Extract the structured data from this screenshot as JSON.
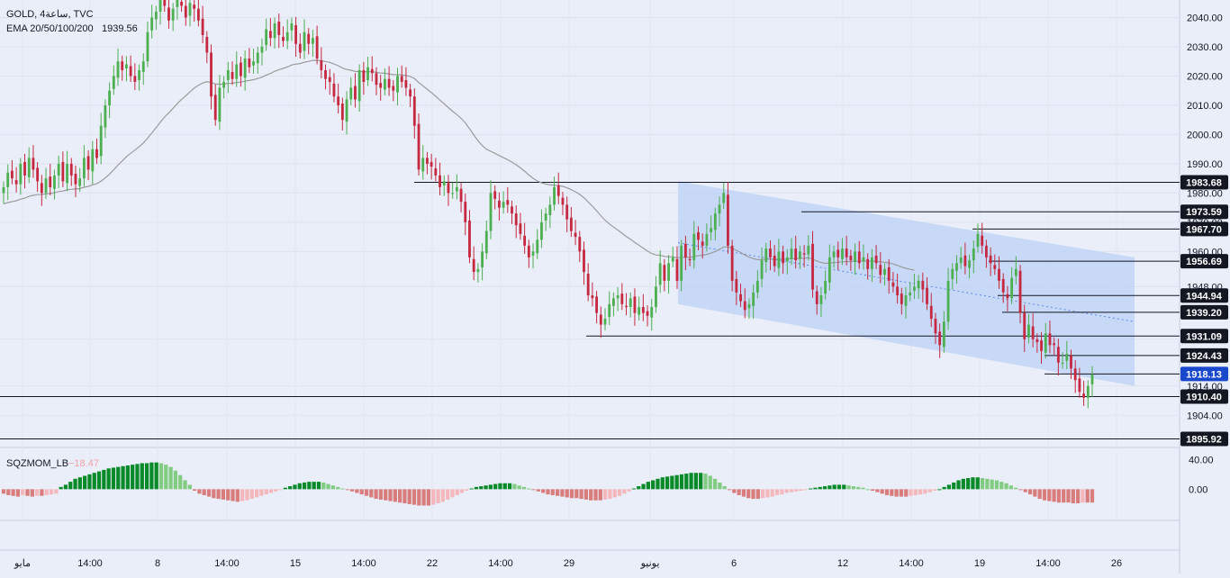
{
  "header": {
    "symbol": "GOLD, 4ساعة, TVC",
    "ema_label": "EMA 20/50/100/200",
    "ema_value": "1939.56",
    "osc_label": "SQZMOM_LB",
    "osc_value": "−18.47"
  },
  "colors": {
    "background": "#eaeef9",
    "up": "#4caf50",
    "down": "#c62840",
    "ema": "#9b9b9b",
    "channel_fill": "#bcd2f7",
    "osc_dark_green": "#098a28",
    "osc_light_green": "#82cc82",
    "osc_dark_red": "#d87c7c",
    "osc_light_red": "#f4b8bc",
    "badge_dark": "#131722",
    "badge_blue": "#1848cc"
  },
  "chart_data": {
    "type": "candlestick",
    "title": "GOLD, 4ساعة, TVC",
    "price_axis": {
      "ticks": [
        1904.0,
        1914.0,
        1930.0,
        1948.0,
        1960.0,
        1970.0,
        1980.0,
        1990.0,
        2000.0,
        2010.0,
        2020.0,
        2030.0,
        2040.0
      ],
      "range": [
        1893,
        2046
      ]
    },
    "time_axis": {
      "labels": [
        "مايو",
        "14:00",
        "8",
        "14:00",
        "15",
        "14:00",
        "22",
        "14:00",
        "29",
        "يونيو",
        "6",
        "12",
        "14:00",
        "19",
        "14:00",
        "26"
      ]
    },
    "price_badges": [
      {
        "value": "1983.68",
        "style": "dark"
      },
      {
        "value": "1973.59",
        "style": "dark"
      },
      {
        "value": "1967.70",
        "style": "dark"
      },
      {
        "value": "1956.69",
        "style": "dark"
      },
      {
        "value": "1944.94",
        "style": "dark"
      },
      {
        "value": "1939.20",
        "style": "dark"
      },
      {
        "value": "1931.09",
        "style": "dark"
      },
      {
        "value": "1924.43",
        "style": "dark"
      },
      {
        "value": "1918.13",
        "style": "blue"
      },
      {
        "value": "1910.40",
        "style": "dark"
      },
      {
        "value": "1895.92",
        "style": "dark"
      }
    ],
    "horizontal_levels": [
      1983.68,
      1973.59,
      1967.7,
      1956.69,
      1944.94,
      1939.2,
      1931.09,
      1924.43,
      1918.13,
      1910.4,
      1895.92
    ],
    "closes": [
      1982,
      1987,
      1985,
      1983,
      1990,
      1986,
      1992,
      1988,
      1984,
      1980,
      1985,
      1982,
      1986,
      1990,
      1984,
      1990,
      1986,
      1983,
      1985,
      1992,
      1988,
      1995,
      1992,
      2003,
      2010,
      2015,
      2020,
      2025,
      2022,
      2024,
      2020,
      2018,
      2022,
      2025,
      2035,
      2040,
      2042,
      2046,
      2044,
      2039,
      2043,
      2046,
      2044,
      2040,
      2045,
      2043,
      2039,
      2034,
      2028,
      2013,
      2005,
      2016,
      2018,
      2022,
      2019,
      2024,
      2020,
      2026,
      2023,
      2025,
      2028,
      2030,
      2036,
      2033,
      2038,
      2034,
      2032,
      2035,
      2038,
      2031,
      2028,
      2035,
      2031,
      2033,
      2026,
      2022,
      2019,
      2018,
      2013,
      2010,
      2005,
      2012,
      2016,
      2012,
      2022,
      2018,
      2023,
      2021,
      2017,
      2016,
      2019,
      2016,
      2015,
      2020,
      2018,
      2016,
      2013,
      2003,
      1988,
      1992,
      1990,
      1989,
      1986,
      1982,
      1984,
      1980,
      1980,
      1982,
      1977,
      1970,
      1958,
      1953,
      1954,
      1960,
      1967,
      1980,
      1978,
      1975,
      1977,
      1976,
      1973,
      1969,
      1966,
      1962,
      1958,
      1960,
      1964,
      1970,
      1973,
      1976,
      1982,
      1979,
      1976,
      1971,
      1967,
      1965,
      1960,
      1953,
      1945,
      1944,
      1939,
      1935,
      1937,
      1942,
      1944,
      1945,
      1942,
      1941,
      1944,
      1939,
      1941,
      1939,
      1938,
      1941,
      1948,
      1956,
      1950,
      1956,
      1958,
      1950,
      1962,
      1958,
      1957,
      1966,
      1964,
      1962,
      1966,
      1968,
      1973,
      1976,
      1980,
      1962,
      1950,
      1946,
      1943,
      1940,
      1942,
      1946,
      1950,
      1957,
      1961,
      1958,
      1955,
      1960,
      1956,
      1958,
      1961,
      1957,
      1960,
      1959,
      1962,
      1947,
      1942,
      1945,
      1950,
      1958,
      1960,
      1958,
      1961,
      1958,
      1957,
      1960,
      1956,
      1958,
      1954,
      1958,
      1956,
      1952,
      1954,
      1950,
      1948,
      1945,
      1942,
      1945,
      1946,
      1948,
      1950,
      1947,
      1942,
      1937,
      1932,
      1928,
      1936,
      1950,
      1954,
      1956,
      1958,
      1955,
      1957,
      1961,
      1966,
      1962,
      1958,
      1956,
      1954,
      1950,
      1946,
      1944,
      1951,
      1954,
      1939,
      1930,
      1935,
      1930,
      1929,
      1926,
      1932,
      1928,
      1928,
      1922,
      1922,
      1925,
      1920,
      1916,
      1912,
      1910,
      1914,
      1918
    ]
  },
  "oscillator": {
    "label": "SQZMOM_LB",
    "value": -18.47,
    "ticks": [
      "40.00",
      "0.00"
    ],
    "range": [
      -42,
      55
    ],
    "values": [
      -6,
      -8,
      -9,
      -10,
      -8,
      -9,
      -10,
      -9,
      -9,
      -8,
      -7,
      -6,
      3,
      6,
      10,
      14,
      16,
      18,
      20,
      22,
      24,
      26,
      28,
      29,
      30,
      31,
      32,
      33,
      34,
      35,
      35,
      36,
      36,
      35,
      33,
      30,
      25,
      19,
      12,
      6,
      -2,
      -6,
      -8,
      -10,
      -12,
      -13,
      -14,
      -15,
      -16,
      -17,
      -16,
      -15,
      -13,
      -11,
      -9,
      -7,
      -5,
      -3,
      -1,
      2,
      4,
      6,
      8,
      9,
      10,
      10,
      10,
      9,
      7,
      5,
      3,
      1,
      -1,
      -3,
      -5,
      -7,
      -9,
      -11,
      -13,
      -14,
      -15,
      -16,
      -17,
      -18,
      -19,
      -20,
      -21,
      -22,
      -22,
      -22,
      -21,
      -19,
      -17,
      -14,
      -11,
      -8,
      -5,
      -2,
      1,
      3,
      4,
      5,
      6,
      7,
      8,
      8,
      8,
      7,
      5,
      3,
      1,
      -1,
      -3,
      -5,
      -7,
      -8,
      -9,
      -10,
      -11,
      -12,
      -12,
      -13,
      -14,
      -15,
      -15,
      -15,
      -14,
      -13,
      -11,
      -9,
      -6,
      -3,
      1,
      4,
      7,
      10,
      12,
      14,
      16,
      17,
      18,
      19,
      20,
      21,
      22,
      22,
      22,
      21,
      18,
      14,
      9,
      4,
      -1,
      -5,
      -8,
      -10,
      -12,
      -13,
      -13,
      -12,
      -11,
      -10,
      -8,
      -7,
      -5,
      -4,
      -3,
      -2,
      -1,
      1,
      2,
      3,
      4,
      5,
      6,
      6,
      6,
      5,
      4,
      3,
      2,
      0,
      -2,
      -4,
      -6,
      -8,
      -9,
      -10,
      -10,
      -10,
      -9,
      -8,
      -7,
      -6,
      -4,
      -2,
      0,
      3,
      6,
      9,
      12,
      14,
      15,
      16,
      16,
      15,
      14,
      13,
      12,
      10,
      8,
      5,
      2,
      -1,
      -4,
      -7,
      -10,
      -13,
      -15,
      -16,
      -17,
      -18,
      -18,
      -18,
      -19,
      -19,
      -18,
      -18,
      -18
    ]
  }
}
